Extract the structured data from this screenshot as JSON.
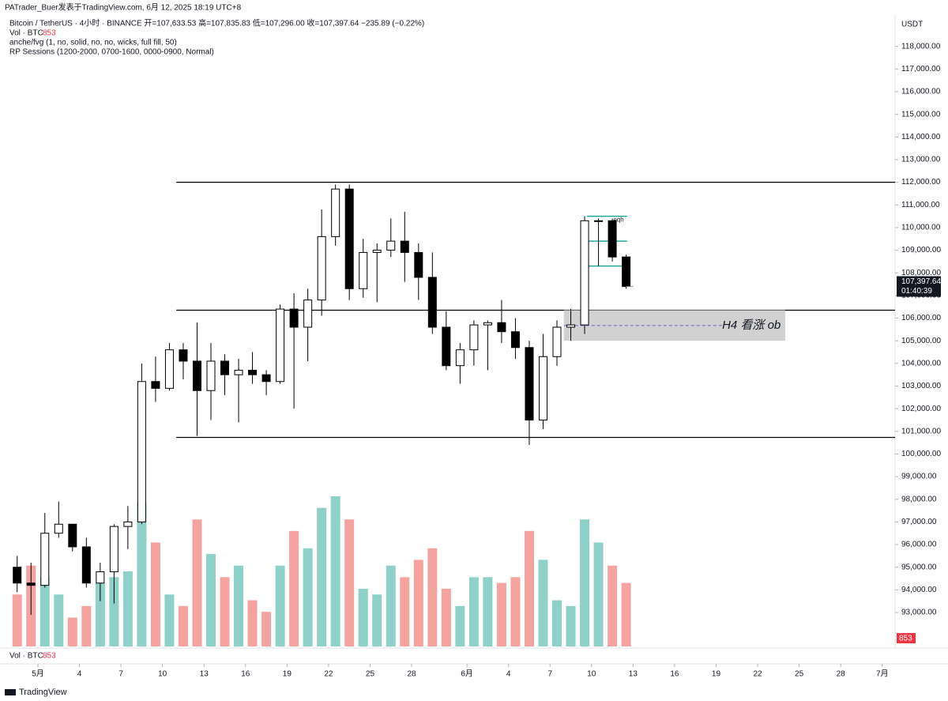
{
  "chart_data": {
    "type": "candlestick",
    "header": {
      "source": "PATrader_Buer发表于TradingView.com, 6月 12, 2025 18:19 UTC+8",
      "symbol": "Bitcoin / TetherUS · 4小时 · BINANCE  开=107,633.53 高=107,835.83 低=107,296.00 收=107,397.64 −235.89 (−0.22%)",
      "vol_label": "Vol · BTC",
      "indicator1": "anche/fvg (1, no, solid, no, no, wicks, full fill, 50)",
      "indicator2": "RP Sessions (1200-2000, 0700-1600, 0000-0900, Normal)"
    },
    "currency": "USDT",
    "x": [
      "2025-04-29",
      "2025-04-30",
      "2025-05-01",
      "2025-05-02",
      "2025-05-03",
      "2025-05-04",
      "2025-05-05",
      "2025-05-06",
      "2025-05-07",
      "2025-05-08",
      "2025-05-09",
      "2025-05-10",
      "2025-05-11",
      "2025-05-12",
      "2025-05-13",
      "2025-05-14",
      "2025-05-15",
      "2025-05-16",
      "2025-05-17",
      "2025-05-18",
      "2025-05-19",
      "2025-05-20",
      "2025-05-21",
      "2025-05-22",
      "2025-05-23",
      "2025-05-24",
      "2025-05-25",
      "2025-05-26",
      "2025-05-27",
      "2025-05-28",
      "2025-05-29",
      "2025-05-30",
      "2025-05-31",
      "2025-06-01",
      "2025-06-02",
      "2025-06-03",
      "2025-06-04",
      "2025-06-05",
      "2025-06-06",
      "2025-06-07",
      "2025-06-08",
      "2025-06-09",
      "2025-06-10",
      "2025-06-11",
      "2025-06-12"
    ],
    "open": [
      95000,
      94300,
      94200,
      96500,
      96900,
      95900,
      94300,
      94800,
      96800,
      97000,
      103200,
      102900,
      104600,
      104100,
      102800,
      104100,
      103500,
      103700,
      103500,
      103200,
      106400,
      105600,
      106800,
      109600,
      111700,
      107300,
      108900,
      109000,
      109400,
      108900,
      107800,
      105600,
      103900,
      104600,
      105700,
      105800,
      105400,
      104700,
      101500,
      104300,
      105600,
      105700,
      110300,
      110300,
      108700
    ],
    "high": [
      95500,
      95200,
      97400,
      97900,
      96900,
      96300,
      95200,
      96900,
      97700,
      104000,
      104300,
      104900,
      104900,
      105800,
      104900,
      104400,
      104200,
      104500,
      103700,
      106600,
      107100,
      107300,
      110800,
      111900,
      111900,
      109500,
      109300,
      110400,
      110700,
      109300,
      108900,
      106300,
      104900,
      105900,
      105900,
      106800,
      106000,
      105000,
      105300,
      105900,
      106400,
      110500,
      110400,
      110400,
      108800
    ],
    "low": [
      93900,
      92900,
      94100,
      96300,
      95700,
      94100,
      93500,
      93400,
      95800,
      96900,
      102300,
      102800,
      103300,
      100800,
      101500,
      102600,
      101400,
      103100,
      102600,
      103100,
      102000,
      104100,
      106100,
      109200,
      106800,
      106900,
      106700,
      108700,
      107600,
      106800,
      105300,
      103700,
      103100,
      103900,
      103700,
      104900,
      104200,
      100400,
      101100,
      103900,
      105000,
      105300,
      108300,
      108500,
      107300
    ],
    "close": [
      94300,
      94200,
      96500,
      96900,
      95900,
      94300,
      94800,
      96800,
      97000,
      103200,
      102900,
      104600,
      104100,
      102800,
      104100,
      103500,
      103700,
      103500,
      103200,
      106400,
      105600,
      106800,
      109600,
      111700,
      107300,
      108900,
      109000,
      109400,
      108900,
      107800,
      105600,
      103900,
      104600,
      105700,
      105800,
      105400,
      104700,
      101500,
      104300,
      105600,
      105700,
      110300,
      110300,
      108700,
      107400
    ],
    "volume": [
      9000,
      14000,
      12000,
      9000,
      5000,
      7000,
      11000,
      12000,
      13000,
      25000,
      18000,
      9000,
      7000,
      22000,
      16000,
      12000,
      14000,
      8000,
      6000,
      14000,
      20000,
      17000,
      24000,
      26000,
      22000,
      10000,
      9000,
      14000,
      12000,
      15000,
      17000,
      10000,
      7000,
      12000,
      12000,
      11000,
      12000,
      20000,
      15000,
      8000,
      7000,
      22000,
      18000,
      14000,
      11000
    ],
    "up_color": "#ffffff",
    "down_color": "#000000",
    "volume_up_color": "#8fd1c8",
    "volume_down_color": "#f5a3a0",
    "ylim": [
      91500,
      119350
    ],
    "yticks": [
      {
        "value": 93000,
        "label": "93,000.00"
      },
      {
        "value": 94000,
        "label": "94,000.00"
      },
      {
        "value": 95000,
        "label": "95,000.00"
      },
      {
        "value": 96000,
        "label": "96,000.00"
      },
      {
        "value": 97000,
        "label": "97,000.00"
      },
      {
        "value": 98000,
        "label": "98,000.00"
      },
      {
        "value": 99000,
        "label": "99,000.00"
      },
      {
        "value": 100000,
        "label": "100,000.00"
      },
      {
        "value": 101000,
        "label": "101,000.00"
      },
      {
        "value": 102000,
        "label": "102,000.00"
      },
      {
        "value": 103000,
        "label": "103,000.00"
      },
      {
        "value": 104000,
        "label": "104,000.00"
      },
      {
        "value": 105000,
        "label": "105,000.00"
      },
      {
        "value": 106000,
        "label": "106,000.00"
      },
      {
        "value": 107000,
        "label": "107,000.00"
      },
      {
        "value": 108000,
        "label": "108,000.00"
      },
      {
        "value": 109000,
        "label": "109,000.00"
      },
      {
        "value": 110000,
        "label": "110,000.00"
      },
      {
        "value": 111000,
        "label": "111,000.00"
      },
      {
        "value": 112000,
        "label": "112,000.00"
      },
      {
        "value": 113000,
        "label": "113,000.00"
      },
      {
        "value": 114000,
        "label": "114,000.00"
      },
      {
        "value": 115000,
        "label": "115,000.00"
      },
      {
        "value": 116000,
        "label": "116,000.00"
      },
      {
        "value": 117000,
        "label": "117,000.00"
      },
      {
        "value": 118000,
        "label": "118,000.00"
      }
    ],
    "xticks": [
      {
        "value": "2025-05-01",
        "label": "5月"
      },
      {
        "value": "2025-05-04",
        "label": "4"
      },
      {
        "value": "2025-05-07",
        "label": "7"
      },
      {
        "value": "2025-05-10",
        "label": "10"
      },
      {
        "value": "2025-05-13",
        "label": "13"
      },
      {
        "value": "2025-05-16",
        "label": "16"
      },
      {
        "value": "2025-05-19",
        "label": "19"
      },
      {
        "value": "2025-05-22",
        "label": "22"
      },
      {
        "value": "2025-05-25",
        "label": "25"
      },
      {
        "value": "2025-05-28",
        "label": "28"
      },
      {
        "value": "2025-06-01",
        "label": "6月"
      },
      {
        "value": "2025-06-04",
        "label": "4"
      },
      {
        "value": "2025-06-07",
        "label": "7"
      },
      {
        "value": "2025-06-10",
        "label": "10"
      },
      {
        "value": "2025-06-13",
        "label": "13"
      },
      {
        "value": "2025-06-16",
        "label": "16"
      },
      {
        "value": "2025-06-19",
        "label": "19"
      },
      {
        "value": "2025-06-22",
        "label": "22"
      },
      {
        "value": "2025-06-25",
        "label": "25"
      },
      {
        "value": "2025-06-28",
        "label": "28"
      },
      {
        "value": "2025-07-01",
        "label": "7月"
      }
    ],
    "levels": [
      {
        "value": 112000,
        "start": "2025-05-11"
      },
      {
        "value": 106350,
        "start": "2025-05-11"
      },
      {
        "value": 100730,
        "start": "2025-05-11"
      }
    ],
    "zone": {
      "from": 105000,
      "to": 106350,
      "start": "2025-06-08",
      "end": "2025-06-24",
      "label": "H4 看涨 ob"
    },
    "eqh": {
      "values": [
        110500,
        109400,
        108300
      ],
      "label": "eqh"
    },
    "last_price": {
      "value": 107397.64,
      "label": "107,397.64"
    },
    "countdown": "01:40:39",
    "volume_last": 853,
    "brand": "TradingView"
  }
}
